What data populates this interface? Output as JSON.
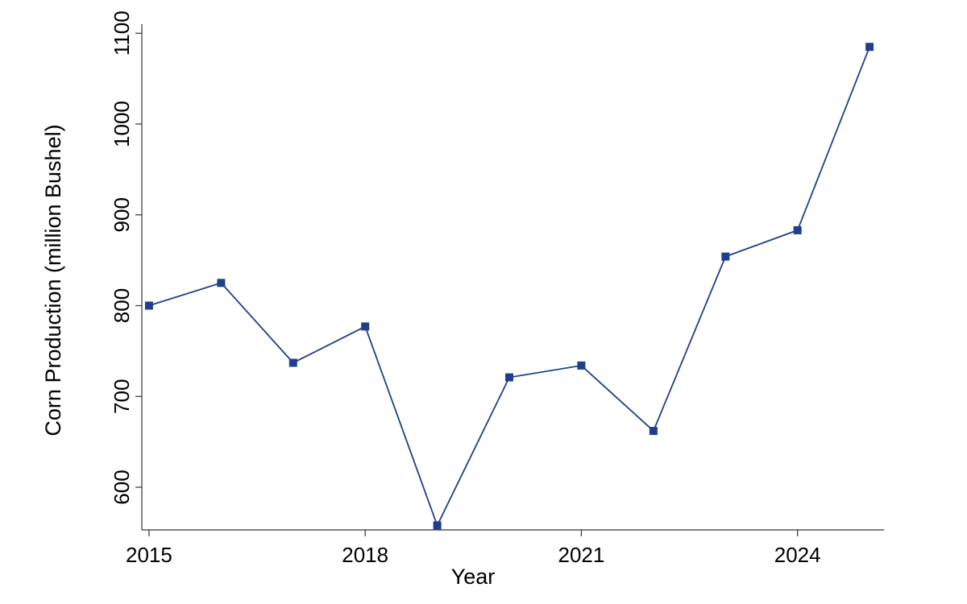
{
  "chart_data": {
    "type": "line",
    "title": "",
    "xlabel": "Year",
    "ylabel": "Corn Production (million Bushel)",
    "xlim": [
      2014.9,
      2025.2
    ],
    "ylim": [
      553,
      1110
    ],
    "xticks": [
      2015,
      2018,
      2021,
      2024
    ],
    "yticks": [
      600,
      700,
      800,
      900,
      1000,
      1100
    ],
    "grid": false,
    "legend": "none",
    "series_color": "#1f3f8a",
    "series": [
      {
        "x": [
          2015,
          2016,
          2017,
          2018,
          2019,
          2020,
          2021,
          2022,
          2023,
          2024,
          2025
        ],
        "values": [
          800,
          825,
          737,
          777,
          558,
          721,
          734,
          662,
          854,
          883,
          1085
        ]
      }
    ]
  }
}
